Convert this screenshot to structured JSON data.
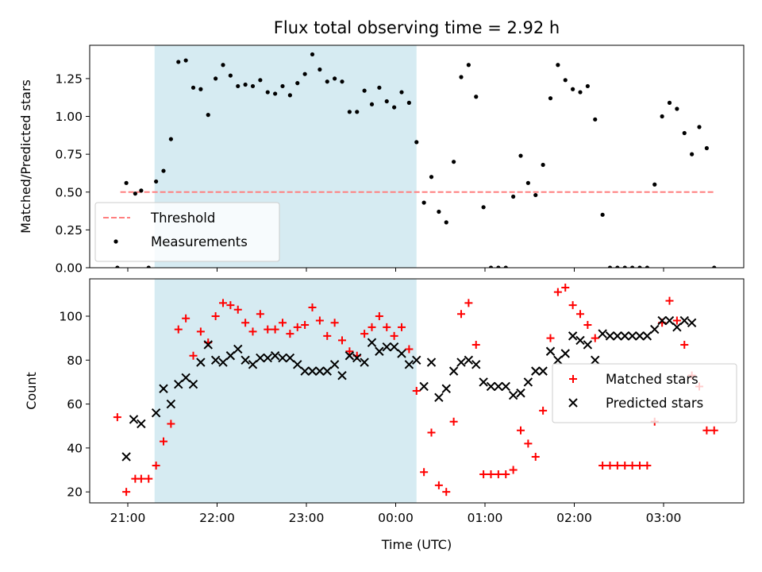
{
  "title": "Flux total observing time = 2.92 h",
  "xlabel": "Time (UTC)",
  "x_ticks": [
    "21:00",
    "22:00",
    "23:00",
    "00:00",
    "01:00",
    "02:00",
    "03:00"
  ],
  "shaded_interval": {
    "start": "21:18",
    "end": "00:14",
    "color": "#add8e6"
  },
  "chart_data": [
    {
      "type": "scatter",
      "ylabel": "Matched/Predicted stars",
      "ylim": [
        0,
        1.47
      ],
      "yticks": [
        "0.00",
        "0.25",
        "0.50",
        "0.75",
        "1.00",
        "1.25"
      ],
      "legend_position": "lower left",
      "threshold": {
        "name": "Threshold",
        "y": 0.5,
        "x_start": "20:55",
        "x_end": "03:35",
        "color": "#ff7f7f",
        "style": "dashed"
      },
      "series": [
        {
          "name": "Measurements",
          "color": "#000000",
          "marker": "dot",
          "x": [
            "20:53",
            "20:59",
            "21:05",
            "21:09",
            "21:14",
            "21:19",
            "21:24",
            "21:29",
            "21:34",
            "21:39",
            "21:44",
            "21:49",
            "21:54",
            "21:59",
            "22:04",
            "22:09",
            "22:14",
            "22:19",
            "22:24",
            "22:29",
            "22:34",
            "22:39",
            "22:44",
            "22:49",
            "22:54",
            "22:59",
            "23:04",
            "23:09",
            "23:14",
            "23:19",
            "23:24",
            "23:29",
            "23:34",
            "23:39",
            "23:44",
            "23:49",
            "23:54",
            "23:59",
            "00:04",
            "00:09",
            "00:14",
            "00:19",
            "00:24",
            "00:29",
            "00:34",
            "00:39",
            "00:44",
            "00:49",
            "00:54",
            "00:59",
            "01:04",
            "01:09",
            "01:14",
            "01:19",
            "01:24",
            "01:29",
            "01:34",
            "01:39",
            "01:44",
            "01:49",
            "01:54",
            "01:59",
            "02:04",
            "02:09",
            "02:14",
            "02:19",
            "02:24",
            "02:29",
            "02:34",
            "02:39",
            "02:44",
            "02:49",
            "02:54",
            "02:59",
            "03:04",
            "03:09",
            "03:14",
            "03:19",
            "03:24",
            "03:29",
            "03:34"
          ],
          "y": [
            0.0,
            0.56,
            0.49,
            0.51,
            0.0,
            0.57,
            0.64,
            0.85,
            1.36,
            1.37,
            1.19,
            1.18,
            1.01,
            1.25,
            1.34,
            1.27,
            1.2,
            1.21,
            1.2,
            1.24,
            1.16,
            1.15,
            1.2,
            1.14,
            1.22,
            1.28,
            1.41,
            1.31,
            1.23,
            1.25,
            1.23,
            1.03,
            1.03,
            1.17,
            1.08,
            1.19,
            1.1,
            1.06,
            1.16,
            1.09,
            0.83,
            0.43,
            0.6,
            0.37,
            0.3,
            0.7,
            1.26,
            1.34,
            1.13,
            0.4,
            0.0,
            0.0,
            0.0,
            0.47,
            0.74,
            0.56,
            0.48,
            0.68,
            1.12,
            1.34,
            1.24,
            1.18,
            1.16,
            1.2,
            0.98,
            0.35,
            0.0,
            0.0,
            0.0,
            0.0,
            0.0,
            0.0,
            0.55,
            1.0,
            1.09,
            1.05,
            0.89,
            0.75,
            0.93,
            0.79,
            0.0
          ]
        }
      ]
    },
    {
      "type": "scatter",
      "ylabel": "Count",
      "ylim": [
        15,
        117
      ],
      "yticks": [
        "20",
        "40",
        "60",
        "80",
        "100"
      ],
      "legend_position": "right",
      "series": [
        {
          "name": "Matched stars",
          "color": "#ff0000",
          "marker": "plus",
          "x": [
            "20:53",
            "20:59",
            "21:05",
            "21:09",
            "21:14",
            "21:19",
            "21:24",
            "21:29",
            "21:34",
            "21:39",
            "21:44",
            "21:49",
            "21:54",
            "21:59",
            "22:04",
            "22:09",
            "22:14",
            "22:19",
            "22:24",
            "22:29",
            "22:34",
            "22:39",
            "22:44",
            "22:49",
            "22:54",
            "22:59",
            "23:04",
            "23:09",
            "23:14",
            "23:19",
            "23:24",
            "23:29",
            "23:34",
            "23:39",
            "23:44",
            "23:49",
            "23:54",
            "23:59",
            "00:04",
            "00:09",
            "00:14",
            "00:19",
            "00:24",
            "00:29",
            "00:34",
            "00:39",
            "00:44",
            "00:49",
            "00:54",
            "00:59",
            "01:04",
            "01:09",
            "01:14",
            "01:19",
            "01:24",
            "01:29",
            "01:34",
            "01:39",
            "01:44",
            "01:49",
            "01:54",
            "01:59",
            "02:04",
            "02:09",
            "02:14",
            "02:19",
            "02:24",
            "02:29",
            "02:34",
            "02:39",
            "02:44",
            "02:49",
            "02:54",
            "02:59",
            "03:04",
            "03:09",
            "03:14",
            "03:19",
            "03:24",
            "03:29",
            "03:34"
          ],
          "y": [
            54,
            20,
            26,
            26,
            26,
            32,
            43,
            51,
            94,
            99,
            82,
            93,
            88,
            100,
            106,
            105,
            103,
            97,
            93,
            101,
            94,
            94,
            97,
            92,
            95,
            96,
            104,
            98,
            91,
            97,
            89,
            84,
            82,
            92,
            95,
            100,
            95,
            91,
            95,
            85,
            66,
            29,
            47,
            23,
            20,
            52,
            101,
            106,
            87,
            28,
            28,
            28,
            28,
            30,
            48,
            42,
            36,
            57,
            90,
            111,
            113,
            105,
            101,
            96,
            90,
            32,
            32,
            32,
            32,
            32,
            32,
            32,
            52,
            97,
            107,
            98,
            87,
            73,
            68,
            48,
            48
          ]
        },
        {
          "name": "Predicted stars",
          "color": "#000000",
          "marker": "x",
          "x": [
            "20:59",
            "21:04",
            "21:09",
            "21:19",
            "21:24",
            "21:29",
            "21:34",
            "21:39",
            "21:44",
            "21:49",
            "21:54",
            "21:59",
            "22:04",
            "22:09",
            "22:14",
            "22:19",
            "22:24",
            "22:29",
            "22:34",
            "22:39",
            "22:44",
            "22:49",
            "22:54",
            "22:59",
            "23:04",
            "23:09",
            "23:14",
            "23:19",
            "23:24",
            "23:29",
            "23:34",
            "23:39",
            "23:44",
            "23:49",
            "23:54",
            "23:59",
            "00:04",
            "00:09",
            "00:14",
            "00:19",
            "00:24",
            "00:29",
            "00:34",
            "00:39",
            "00:44",
            "00:49",
            "00:54",
            "00:59",
            "01:04",
            "01:09",
            "01:14",
            "01:19",
            "01:24",
            "01:29",
            "01:34",
            "01:39",
            "01:44",
            "01:49",
            "01:54",
            "01:59",
            "02:04",
            "02:09",
            "02:14",
            "02:19",
            "02:24",
            "02:29",
            "02:34",
            "02:39",
            "02:44",
            "02:49",
            "02:54",
            "02:59",
            "03:04",
            "03:09",
            "03:14",
            "03:19"
          ],
          "y": [
            36,
            53,
            51,
            56,
            67,
            60,
            69,
            72,
            69,
            79,
            87,
            80,
            79,
            82,
            85,
            80,
            78,
            81,
            81,
            82,
            81,
            81,
            78,
            75,
            75,
            75,
            75,
            78,
            73,
            82,
            81,
            79,
            88,
            84,
            86,
            86,
            83,
            78,
            80,
            68,
            79,
            63,
            67,
            75,
            79,
            80,
            78,
            70,
            68,
            68,
            68,
            64,
            65,
            70,
            75,
            75,
            84,
            80,
            83,
            91,
            89,
            87,
            80,
            92,
            91,
            91,
            91,
            91,
            91,
            91,
            94,
            98,
            98,
            95,
            98,
            97
          ]
        }
      ]
    }
  ]
}
